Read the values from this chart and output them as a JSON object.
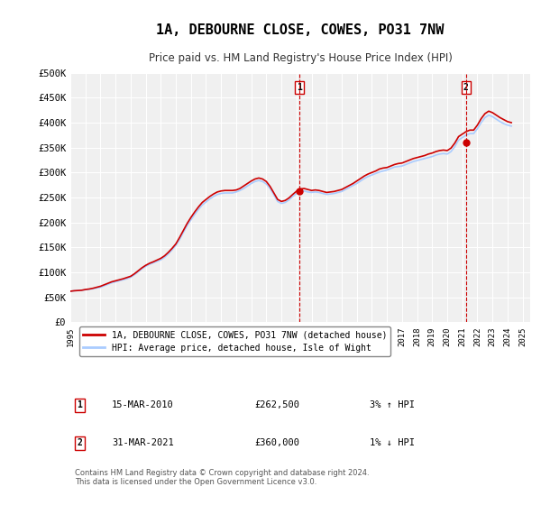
{
  "title": "1A, DEBOURNE CLOSE, COWES, PO31 7NW",
  "subtitle": "Price paid vs. HM Land Registry's House Price Index (HPI)",
  "ylabel_ticks": [
    "£0",
    "£50K",
    "£100K",
    "£150K",
    "£200K",
    "£250K",
    "£300K",
    "£350K",
    "£400K",
    "£450K",
    "£500K"
  ],
  "ytick_values": [
    0,
    50000,
    100000,
    150000,
    200000,
    250000,
    300000,
    350000,
    400000,
    450000,
    500000
  ],
  "ylim": [
    0,
    500000
  ],
  "xlim_start": 1995.0,
  "xlim_end": 2025.5,
  "background_color": "#ffffff",
  "plot_bg_color": "#f0f0f0",
  "grid_color": "#ffffff",
  "line1_color": "#cc0000",
  "line2_color": "#aaccff",
  "transaction1_x": 2010.21,
  "transaction1_y": 262500,
  "transaction1_label": "1",
  "transaction2_x": 2021.25,
  "transaction2_y": 360000,
  "transaction2_label": "2",
  "marker_color": "#cc0000",
  "vline_color": "#cc0000",
  "legend_label1": "1A, DEBOURNE CLOSE, COWES, PO31 7NW (detached house)",
  "legend_label2": "HPI: Average price, detached house, Isle of Wight",
  "table_rows": [
    {
      "num": "1",
      "date": "15-MAR-2010",
      "price": "£262,500",
      "hpi": "3% ↑ HPI"
    },
    {
      "num": "2",
      "date": "31-MAR-2021",
      "price": "£360,000",
      "hpi": "1% ↓ HPI"
    }
  ],
  "footnote": "Contains HM Land Registry data © Crown copyright and database right 2024.\nThis data is licensed under the Open Government Licence v3.0.",
  "hpi_data": {
    "years": [
      1995.0,
      1995.25,
      1995.5,
      1995.75,
      1996.0,
      1996.25,
      1996.5,
      1996.75,
      1997.0,
      1997.25,
      1997.5,
      1997.75,
      1998.0,
      1998.25,
      1998.5,
      1998.75,
      1999.0,
      1999.25,
      1999.5,
      1999.75,
      2000.0,
      2000.25,
      2000.5,
      2000.75,
      2001.0,
      2001.25,
      2001.5,
      2001.75,
      2002.0,
      2002.25,
      2002.5,
      2002.75,
      2003.0,
      2003.25,
      2003.5,
      2003.75,
      2004.0,
      2004.25,
      2004.5,
      2004.75,
      2005.0,
      2005.25,
      2005.5,
      2005.75,
      2006.0,
      2006.25,
      2006.5,
      2006.75,
      2007.0,
      2007.25,
      2007.5,
      2007.75,
      2008.0,
      2008.25,
      2008.5,
      2008.75,
      2009.0,
      2009.25,
      2009.5,
      2009.75,
      2010.0,
      2010.25,
      2010.5,
      2010.75,
      2011.0,
      2011.25,
      2011.5,
      2011.75,
      2012.0,
      2012.25,
      2012.5,
      2012.75,
      2013.0,
      2013.25,
      2013.5,
      2013.75,
      2014.0,
      2014.25,
      2014.5,
      2014.75,
      2015.0,
      2015.25,
      2015.5,
      2015.75,
      2016.0,
      2016.25,
      2016.5,
      2016.75,
      2017.0,
      2017.25,
      2017.5,
      2017.75,
      2018.0,
      2018.25,
      2018.5,
      2018.75,
      2019.0,
      2019.25,
      2019.5,
      2019.75,
      2020.0,
      2020.25,
      2020.5,
      2020.75,
      2021.0,
      2021.25,
      2021.5,
      2021.75,
      2022.0,
      2022.25,
      2022.5,
      2022.75,
      2023.0,
      2023.25,
      2023.5,
      2023.75,
      2024.0,
      2024.25
    ],
    "values": [
      62000,
      63000,
      63500,
      64000,
      65000,
      66000,
      67000,
      68500,
      70000,
      73000,
      76000,
      79000,
      81000,
      83000,
      85000,
      87000,
      90000,
      95000,
      101000,
      107000,
      112000,
      116000,
      119000,
      122000,
      125000,
      130000,
      137000,
      145000,
      154000,
      166000,
      180000,
      194000,
      205000,
      216000,
      226000,
      235000,
      241000,
      247000,
      252000,
      256000,
      258000,
      259000,
      259000,
      259000,
      261000,
      264000,
      268000,
      273000,
      278000,
      282000,
      284000,
      282000,
      277000,
      268000,
      255000,
      242000,
      238000,
      240000,
      245000,
      252000,
      258000,
      262000,
      263000,
      261000,
      260000,
      261000,
      260000,
      258000,
      256000,
      257000,
      258000,
      260000,
      262000,
      266000,
      270000,
      274000,
      278000,
      283000,
      288000,
      292000,
      295000,
      298000,
      301000,
      303000,
      305000,
      308000,
      311000,
      312000,
      313000,
      316000,
      319000,
      322000,
      324000,
      326000,
      328000,
      330000,
      332000,
      335000,
      337000,
      338000,
      337000,
      342000,
      352000,
      365000,
      370000,
      375000,
      378000,
      378000,
      388000,
      400000,
      410000,
      415000,
      412000,
      407000,
      402000,
      398000,
      395000,
      393000
    ]
  },
  "price_data": {
    "years": [
      1995.0,
      1995.25,
      1995.5,
      1995.75,
      1996.0,
      1996.25,
      1996.5,
      1996.75,
      1997.0,
      1997.25,
      1997.5,
      1997.75,
      1998.0,
      1998.25,
      1998.5,
      1998.75,
      1999.0,
      1999.25,
      1999.5,
      1999.75,
      2000.0,
      2000.25,
      2000.5,
      2000.75,
      2001.0,
      2001.25,
      2001.5,
      2001.75,
      2002.0,
      2002.25,
      2002.5,
      2002.75,
      2003.0,
      2003.25,
      2003.5,
      2003.75,
      2004.0,
      2004.25,
      2004.5,
      2004.75,
      2005.0,
      2005.25,
      2005.5,
      2005.75,
      2006.0,
      2006.25,
      2006.5,
      2006.75,
      2007.0,
      2007.25,
      2007.5,
      2007.75,
      2008.0,
      2008.25,
      2008.5,
      2008.75,
      2009.0,
      2009.25,
      2009.5,
      2009.75,
      2010.0,
      2010.25,
      2010.5,
      2010.75,
      2011.0,
      2011.25,
      2011.5,
      2011.75,
      2012.0,
      2012.25,
      2012.5,
      2012.75,
      2013.0,
      2013.25,
      2013.5,
      2013.75,
      2014.0,
      2014.25,
      2014.5,
      2014.75,
      2015.0,
      2015.25,
      2015.5,
      2015.75,
      2016.0,
      2016.25,
      2016.5,
      2016.75,
      2017.0,
      2017.25,
      2017.5,
      2017.75,
      2018.0,
      2018.25,
      2018.5,
      2018.75,
      2019.0,
      2019.25,
      2019.5,
      2019.75,
      2020.0,
      2020.25,
      2020.5,
      2020.75,
      2021.0,
      2021.25,
      2021.5,
      2021.75,
      2022.0,
      2022.25,
      2022.5,
      2022.75,
      2023.0,
      2023.25,
      2023.5,
      2023.75,
      2024.0,
      2024.25
    ],
    "values": [
      62000,
      63000,
      63500,
      64000,
      65500,
      66500,
      68000,
      70000,
      72000,
      75000,
      78000,
      81000,
      83000,
      85000,
      87000,
      89500,
      92000,
      97000,
      103000,
      109000,
      114000,
      118000,
      121000,
      124500,
      128000,
      133000,
      140000,
      148000,
      157000,
      170000,
      184000,
      198000,
      210000,
      221000,
      231000,
      240000,
      246000,
      252000,
      257000,
      261000,
      263000,
      264000,
      264000,
      264000,
      265000,
      268000,
      273000,
      278000,
      283000,
      287000,
      289000,
      287000,
      282000,
      272000,
      259000,
      246000,
      242000,
      244000,
      249000,
      256000,
      262500,
      267000,
      268000,
      266000,
      264000,
      265000,
      264000,
      262000,
      260000,
      261000,
      262000,
      264000,
      266000,
      270000,
      274000,
      278000,
      283000,
      288000,
      293000,
      297000,
      300000,
      303000,
      307000,
      309000,
      310000,
      313000,
      316000,
      318000,
      319000,
      322000,
      325000,
      328000,
      330000,
      332000,
      334000,
      337000,
      339000,
      342000,
      344000,
      345000,
      344000,
      349000,
      359000,
      372000,
      377000,
      382000,
      385000,
      385000,
      395000,
      408000,
      418000,
      423000,
      420000,
      415000,
      410000,
      406000,
      402000,
      400000
    ]
  }
}
